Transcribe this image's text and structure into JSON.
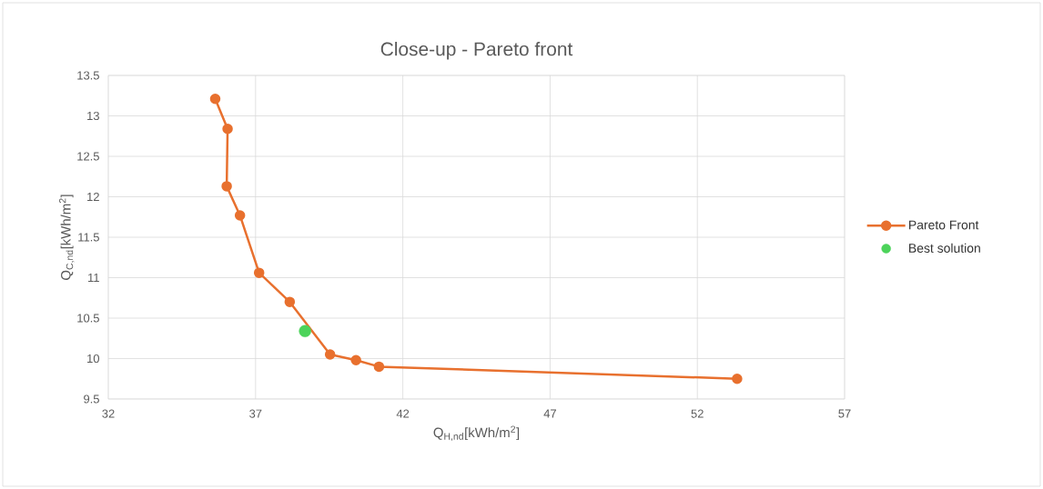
{
  "chart_data": {
    "type": "line",
    "title": "Close-up - Pareto front",
    "xlabel": "Q$_{H,nd}$[kWh/m$^{2}$]",
    "ylabel": "Q$_{C,nd}$[kWh/m$^{2}$]",
    "series": [
      {
        "name": "Pareto Front",
        "color": "#e8702e",
        "x": [
          35.63,
          36.05,
          36.02,
          36.47,
          37.12,
          38.16,
          38.68,
          39.53,
          40.41,
          41.19,
          53.35
        ],
        "values": [
          13.21,
          12.84,
          12.13,
          11.77,
          11.06,
          10.7,
          null,
          10.05,
          9.98,
          9.9,
          9.75
        ]
      },
      {
        "name": "Best solution",
        "type": "scatter",
        "color": "#4cd35a",
        "x": [
          38.68
        ],
        "values": [
          10.34
        ]
      }
    ],
    "xlim": [
      32,
      57
    ],
    "xticks": [
      32,
      37,
      42,
      47,
      52,
      57
    ],
    "ylim": [
      9.5,
      13.5
    ],
    "yticks": [
      9.5,
      10,
      10.5,
      11,
      11.5,
      12,
      12.5,
      13,
      13.5
    ],
    "grid": true,
    "legend": "right",
    "marker": "circle",
    "line_style": "solid"
  }
}
